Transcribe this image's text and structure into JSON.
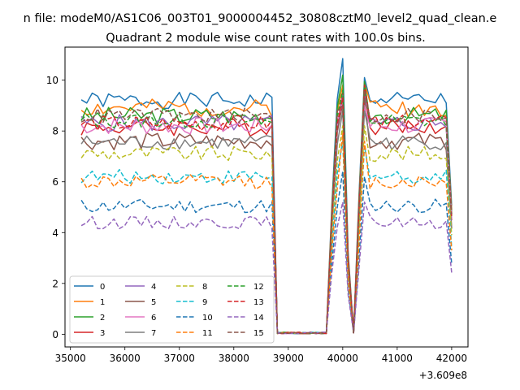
{
  "figure": {
    "suptitle": "n file: modeM0/AS1C06_003T01_9000004452_30808cztM0_level2_quad_clean.e",
    "title": "Quadrant 2 module wise count rates with 100.0s bins."
  },
  "chart_data": {
    "type": "line",
    "title": "Quadrant 2 module wise count rates with 100.0s bins.",
    "xlabel": "",
    "ylabel": "",
    "x_offset_label": "+3.609e8",
    "xlim": [
      34900,
      42300
    ],
    "ylim": [
      -0.5,
      11.3
    ],
    "xticks": [
      35000,
      36000,
      37000,
      38000,
      39000,
      40000,
      41000,
      42000
    ],
    "yticks": [
      0,
      2,
      4,
      6,
      8,
      10
    ],
    "grid": false,
    "legend": {
      "location": "lower-left",
      "columns": 4
    },
    "x": {
      "start": 35200,
      "step": 100,
      "count": 69
    },
    "series": [
      {
        "name": "0",
        "color": "#1f77b4",
        "dashed": false,
        "level": 9.2,
        "noise": 0.32,
        "seed": 1,
        "peak1": 10.85,
        "peak2": 10.1
      },
      {
        "name": "1",
        "color": "#ff7f0e",
        "dashed": false,
        "level": 8.9,
        "noise": 0.35,
        "seed": 2,
        "peak1": 9.8,
        "peak2": 9.9
      },
      {
        "name": "2",
        "color": "#2ca02c",
        "dashed": false,
        "level": 8.6,
        "noise": 0.35,
        "seed": 3,
        "peak1": 10.2,
        "peak2": 9.95
      },
      {
        "name": "3",
        "color": "#d62728",
        "dashed": false,
        "level": 8.15,
        "noise": 0.35,
        "seed": 4,
        "peak1": 9.5,
        "peak2": 9.6
      },
      {
        "name": "4",
        "color": "#9467bd",
        "dashed": false,
        "level": 8.3,
        "noise": 0.35,
        "seed": 5,
        "peak1": 9.4,
        "peak2": 9.4
      },
      {
        "name": "5",
        "color": "#8c564b",
        "dashed": false,
        "level": 7.6,
        "noise": 0.35,
        "seed": 6,
        "peak1": 9.1,
        "peak2": 9.3
      },
      {
        "name": "6",
        "color": "#e377c2",
        "dashed": false,
        "level": 8.2,
        "noise": 0.35,
        "seed": 7,
        "peak1": 9.2,
        "peak2": 9.0
      },
      {
        "name": "7",
        "color": "#7f7f7f",
        "dashed": false,
        "level": 7.55,
        "noise": 0.3,
        "seed": 8,
        "peak1": 8.8,
        "peak2": 8.8
      },
      {
        "name": "8",
        "color": "#bcbd22",
        "dashed": true,
        "level": 7.1,
        "noise": 0.3,
        "seed": 9,
        "peak1": 8.2,
        "peak2": 8.2
      },
      {
        "name": "9",
        "color": "#17becf",
        "dashed": true,
        "level": 6.2,
        "noise": 0.28,
        "seed": 10,
        "peak1": 7.6,
        "peak2": 7.4
      },
      {
        "name": "10",
        "color": "#1f77b4",
        "dashed": true,
        "level": 5.05,
        "noise": 0.28,
        "seed": 11,
        "peak1": 6.4,
        "peak2": 6.2
      },
      {
        "name": "11",
        "color": "#ff7f0e",
        "dashed": true,
        "level": 6.0,
        "noise": 0.3,
        "seed": 12,
        "peak1": 7.9,
        "peak2": 7.6
      },
      {
        "name": "12",
        "color": "#2ca02c",
        "dashed": true,
        "level": 8.4,
        "noise": 0.3,
        "seed": 13,
        "peak1": 9.6,
        "peak2": 9.7
      },
      {
        "name": "13",
        "color": "#d62728",
        "dashed": true,
        "level": 8.3,
        "noise": 0.32,
        "seed": 14,
        "peak1": 9.3,
        "peak2": 9.8
      },
      {
        "name": "14",
        "color": "#9467bd",
        "dashed": true,
        "level": 4.4,
        "noise": 0.25,
        "seed": 15,
        "peak1": 5.2,
        "peak2": 5.2
      },
      {
        "name": "15",
        "color": "#8c564b",
        "dashed": true,
        "level": 8.6,
        "noise": 0.3,
        "seed": 16,
        "peak1": 9.0,
        "peak2": 9.6
      }
    ]
  }
}
